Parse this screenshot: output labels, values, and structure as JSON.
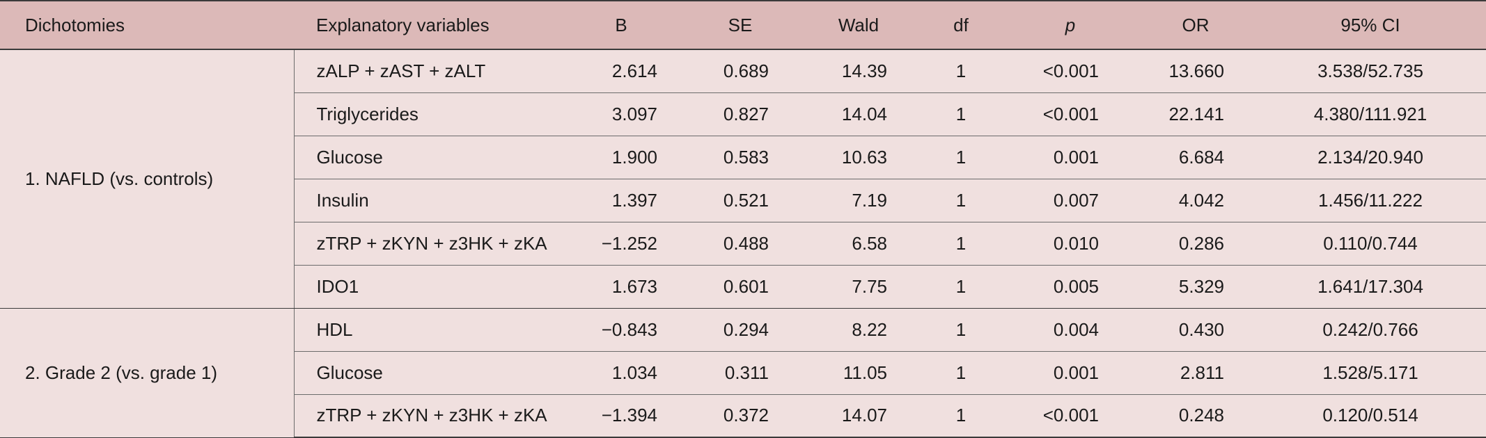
{
  "headers": {
    "dichotomies": "Dichotomies",
    "variables": "Explanatory variables",
    "b": "B",
    "se": "SE",
    "wald": "Wald",
    "df": "df",
    "p": "p",
    "or": "OR",
    "ci": "95% CI"
  },
  "groups": [
    {
      "label": "1. NAFLD (vs. controls)",
      "rows": [
        {
          "variable": "zALP + zAST + zALT",
          "b": "2.614",
          "se": "0.689",
          "wald": "14.39",
          "df": "1",
          "p": "<0.001",
          "or": "13.660",
          "ci": "3.538/52.735"
        },
        {
          "variable": "Triglycerides",
          "b": "3.097",
          "se": "0.827",
          "wald": "14.04",
          "df": "1",
          "p": "<0.001",
          "or": "22.141",
          "ci": "4.380/111.921"
        },
        {
          "variable": "Glucose",
          "b": "1.900",
          "se": "0.583",
          "wald": "10.63",
          "df": "1",
          "p": "0.001",
          "or": "6.684",
          "ci": "2.134/20.940"
        },
        {
          "variable": "Insulin",
          "b": "1.397",
          "se": "0.521",
          "wald": "7.19",
          "df": "1",
          "p": "0.007",
          "or": "4.042",
          "ci": "1.456/11.222"
        },
        {
          "variable": "zTRP + zKYN + z3HK + zKA",
          "b": "−1.252",
          "se": "0.488",
          "wald": "6.58",
          "df": "1",
          "p": "0.010",
          "or": "0.286",
          "ci": "0.110/0.744"
        },
        {
          "variable": "IDO1",
          "b": "1.673",
          "se": "0.601",
          "wald": "7.75",
          "df": "1",
          "p": "0.005",
          "or": "5.329",
          "ci": "1.641/17.304"
        }
      ]
    },
    {
      "label": "2. Grade 2 (vs. grade 1)",
      "rows": [
        {
          "variable": "HDL",
          "b": "−0.843",
          "se": "0.294",
          "wald": "8.22",
          "df": "1",
          "p": "0.004",
          "or": "0.430",
          "ci": "0.242/0.766"
        },
        {
          "variable": "Glucose",
          "b": "1.034",
          "se": "0.311",
          "wald": "11.05",
          "df": "1",
          "p": "0.001",
          "or": "2.811",
          "ci": "1.528/5.171"
        },
        {
          "variable": "zTRP + zKYN + z3HK + zKA",
          "b": "−1.394",
          "se": "0.372",
          "wald": "14.07",
          "df": "1",
          "p": "<0.001",
          "or": "0.248",
          "ci": "0.120/0.514"
        }
      ]
    }
  ]
}
